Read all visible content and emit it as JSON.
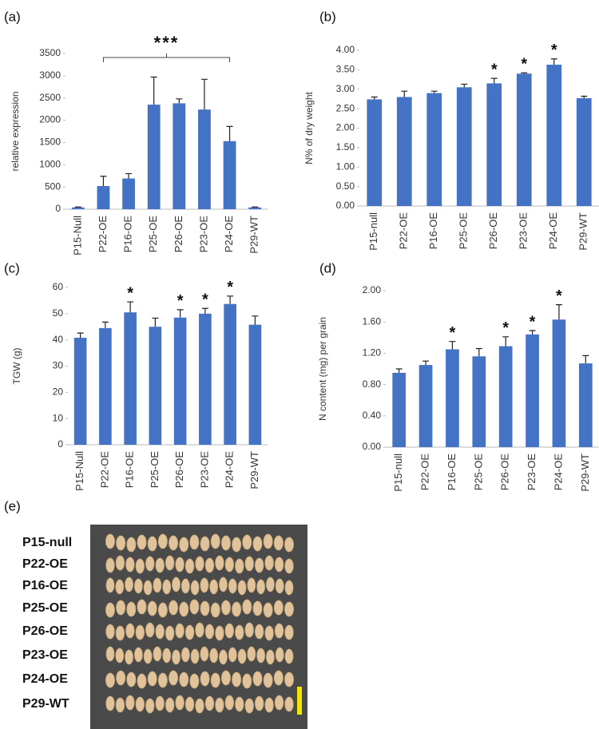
{
  "chart_data": [
    {
      "type": "bar",
      "panel": "(a)",
      "y_label": "relative expression",
      "annotation": "***",
      "categories": [
        "P15-Null",
        "P22-OE",
        "P16-OE",
        "P25-OE",
        "P26-OE",
        "P23-OE",
        "P24-OE",
        "P29-WT"
      ],
      "values": [
        40,
        520,
        690,
        2350,
        2380,
        2240,
        1530,
        40
      ],
      "errors": [
        10,
        220,
        110,
        620,
        100,
        680,
        330,
        10
      ],
      "color": "#4472c4",
      "ylim": [
        0,
        3500
      ],
      "yticks": [
        0,
        500,
        1000,
        1500,
        2000,
        2500,
        3000,
        3500
      ]
    },
    {
      "type": "bar",
      "panel": "(b)",
      "y_label": "N% of dry weight",
      "categories": [
        "P15-null",
        "P22-OE",
        "P16-OE",
        "P25-OE",
        "P26-OE",
        "P23-OE",
        "P24-OE",
        "P29-WT"
      ],
      "values": [
        2.74,
        2.8,
        2.9,
        3.05,
        3.15,
        3.4,
        3.63,
        2.77
      ],
      "errors": [
        0.06,
        0.15,
        0.05,
        0.08,
        0.13,
        0.02,
        0.15,
        0.05
      ],
      "significance_labels": [
        null,
        null,
        null,
        null,
        "*",
        "*",
        "*",
        null
      ],
      "color": "#4472c4",
      "ylim": [
        0,
        4
      ],
      "yticks": [
        {
          "value": 0,
          "label": "0.00"
        },
        {
          "value": 0.5,
          "label": "0.50"
        },
        {
          "value": 1,
          "label": "1.00"
        },
        {
          "value": 1.5,
          "label": "1.50"
        },
        {
          "value": 2,
          "label": "2.00"
        },
        {
          "value": 2.5,
          "label": "2.50"
        },
        {
          "value": 3,
          "label": "3.00"
        },
        {
          "value": 3.5,
          "label": "3.50"
        },
        {
          "value": 4,
          "label": "4.00"
        }
      ]
    },
    {
      "type": "bar",
      "panel": "(c)",
      "y_label": "TGW (g)",
      "categories": [
        "P15-Null",
        "P22-OE",
        "P16-OE",
        "P25-OE",
        "P26-OE",
        "P23-OE",
        "P24-OE",
        "P29-WT"
      ],
      "values": [
        40.8,
        44.5,
        50.5,
        45,
        48.5,
        50,
        53.7,
        45.8
      ],
      "errors": [
        1.8,
        2.3,
        4,
        3.3,
        3,
        2,
        3,
        3.3
      ],
      "significance_labels": [
        null,
        null,
        "*",
        null,
        "*",
        "*",
        "*",
        null
      ],
      "color": "#4472c4",
      "ylim": [
        0,
        60
      ],
      "yticks": [
        0,
        10,
        20,
        30,
        40,
        50,
        60
      ]
    },
    {
      "type": "bar",
      "panel": "(d)",
      "y_label": "N content (mg) per grain",
      "categories": [
        "P15-null",
        "P22-OE",
        "P16-OE",
        "P25-OE",
        "P26-OE",
        "P23-OE",
        "P24-OE",
        "P29-WT"
      ],
      "values": [
        0.95,
        1.05,
        1.25,
        1.16,
        1.29,
        1.44,
        1.63,
        1.07
      ],
      "errors": [
        0.05,
        0.05,
        0.1,
        0.1,
        0.12,
        0.05,
        0.19,
        0.1
      ],
      "significance_labels": [
        null,
        null,
        "*",
        null,
        "*",
        "*",
        "*",
        null
      ],
      "color": "#4472c4",
      "ylim": [
        0,
        2
      ],
      "yticks": [
        {
          "value": 0,
          "label": "0.00"
        },
        {
          "value": 0.4,
          "label": "0.40"
        },
        {
          "value": 0.8,
          "label": "0.80"
        },
        {
          "value": 1.2,
          "label": "1.20"
        },
        {
          "value": 1.6,
          "label": "1.60"
        },
        {
          "value": 2,
          "label": "2.00"
        }
      ]
    }
  ],
  "photo": {
    "panel": "(e)",
    "rows": [
      "P15-null",
      "P22-OE",
      "P16-OE",
      "P25-OE",
      "P26-OE",
      "P23-OE",
      "P24-OE",
      "P29-WT"
    ]
  }
}
